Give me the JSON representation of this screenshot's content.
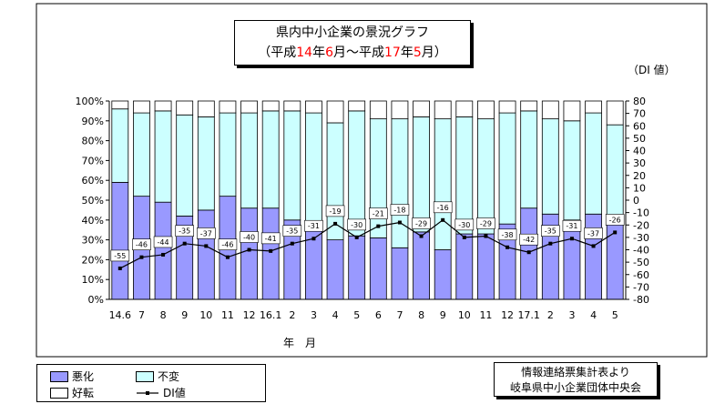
{
  "title": {
    "line1": "県内中小企業の景況グラフ",
    "line2": {
      "pre": "（平成",
      "y1": "14",
      "nen1": "年",
      "m1": "6",
      "mid": "月～平成",
      "y2": "17",
      "nen2": "年",
      "m2": "5",
      "post": "月）"
    }
  },
  "di_unit": "（DI 値）",
  "source": {
    "line1": "情報連絡票集計表より",
    "line2": "岐阜県中小企業団体中央会"
  },
  "legend": {
    "bad": "悪化",
    "same": "不変",
    "good": "好転",
    "di": "DI値"
  },
  "colors": {
    "bad": "#9999ff",
    "same": "#ccffff",
    "good": "#ffffff",
    "line": "#000000"
  },
  "chart_data": {
    "type": "bar",
    "stacked": true,
    "xlabel": "年　月",
    "categories": [
      "14.6",
      "7",
      "8",
      "9",
      "10",
      "11",
      "12",
      "16.1",
      "2",
      "3",
      "4",
      "5",
      "6",
      "7",
      "8",
      "9",
      "10",
      "11",
      "12",
      "17.1",
      "2",
      "3",
      "4",
      "5"
    ],
    "ylim": [
      0,
      100
    ],
    "y_ticks": [
      "0%",
      "10%",
      "20%",
      "30%",
      "40%",
      "50%",
      "60%",
      "70%",
      "80%",
      "90%",
      "100%"
    ],
    "y2lim": [
      -80,
      80
    ],
    "y2_ticks": [
      "-80",
      "-70",
      "-60",
      "-50",
      "-40",
      "-30",
      "-20",
      "-10",
      "0",
      "10",
      "20",
      "30",
      "40",
      "50",
      "60",
      "70",
      "80"
    ],
    "series": [
      {
        "name": "悪化",
        "values": [
          59,
          52,
          49,
          42,
          45,
          52,
          46,
          46,
          40,
          35,
          30,
          32,
          31,
          26,
          34,
          25,
          33,
          33,
          38,
          46,
          43,
          40,
          43,
          38
        ]
      },
      {
        "name": "不変",
        "values": [
          37,
          42,
          46,
          51,
          47,
          42,
          48,
          49,
          55,
          59,
          59,
          63,
          60,
          65,
          58,
          66,
          59,
          58,
          56,
          49,
          48,
          50,
          51,
          50
        ]
      },
      {
        "name": "好転",
        "values": [
          4,
          6,
          5,
          7,
          8,
          6,
          6,
          5,
          5,
          6,
          11,
          5,
          9,
          9,
          8,
          9,
          8,
          9,
          6,
          5,
          9,
          10,
          6,
          12
        ]
      },
      {
        "name": "DI値",
        "type": "line",
        "axis": "right",
        "values": [
          -55,
          -46,
          -44,
          -35,
          -37,
          -46,
          -40,
          -41,
          -35,
          -31,
          -19,
          -30,
          -21,
          -18,
          -29,
          -16,
          -30,
          -29,
          -38,
          -42,
          -35,
          -31,
          -37,
          -26
        ]
      }
    ],
    "grid": false,
    "legend_position": "bottom-left"
  }
}
